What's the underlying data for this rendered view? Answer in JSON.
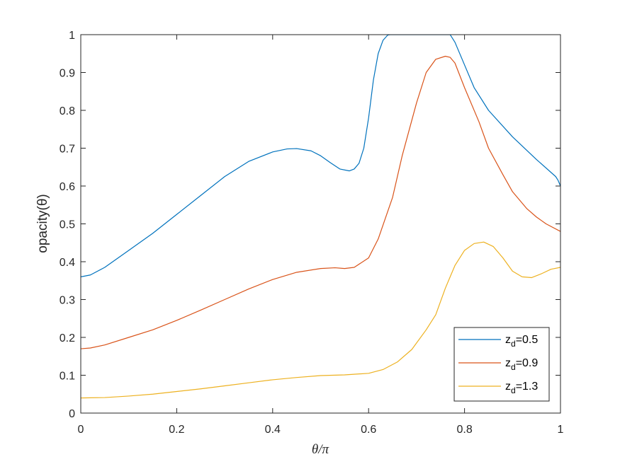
{
  "chart_data": {
    "type": "line",
    "title": "",
    "xlabel": "θ/π",
    "ylabel": "opacity(θ)",
    "xlim": [
      0,
      1
    ],
    "ylim": [
      0,
      1
    ],
    "xticks": [
      0,
      0.2,
      0.4,
      0.6,
      0.8,
      1
    ],
    "xtick_labels": [
      "0",
      "0.2",
      "0.4",
      "0.6",
      "0.8",
      "1"
    ],
    "yticks": [
      0,
      0.1,
      0.2,
      0.3,
      0.4,
      0.5,
      0.6,
      0.7,
      0.8,
      0.9,
      1
    ],
    "ytick_labels": [
      "0",
      "0.1",
      "0.2",
      "0.3",
      "0.4",
      "0.5",
      "0.6",
      "0.7",
      "0.8",
      "0.9",
      "1"
    ],
    "grid": false,
    "legend_position": "bottom-right",
    "series": [
      {
        "name": "z_d=0.5",
        "name_base": "z",
        "name_sub": "d",
        "name_rest": "=0.5",
        "color": "#0072BD",
        "x": [
          0,
          0.02,
          0.05,
          0.1,
          0.15,
          0.2,
          0.25,
          0.3,
          0.35,
          0.4,
          0.43,
          0.45,
          0.48,
          0.5,
          0.52,
          0.54,
          0.56,
          0.57,
          0.58,
          0.59,
          0.6,
          0.61,
          0.62,
          0.63,
          0.64,
          0.645,
          0.65,
          0.7,
          0.75,
          0.77,
          0.78,
          0.8,
          0.82,
          0.85,
          0.9,
          0.95,
          0.99,
          0.995,
          1.0
        ],
        "y": [
          0.36,
          0.365,
          0.385,
          0.43,
          0.475,
          0.525,
          0.575,
          0.625,
          0.665,
          0.69,
          0.698,
          0.699,
          0.693,
          0.68,
          0.662,
          0.645,
          0.64,
          0.645,
          0.66,
          0.7,
          0.78,
          0.88,
          0.95,
          0.985,
          0.999,
          1.0,
          1.0,
          1.0,
          1.0,
          1.0,
          0.98,
          0.92,
          0.86,
          0.8,
          0.73,
          0.67,
          0.625,
          0.615,
          0.6
        ]
      },
      {
        "name": "z_d=0.9",
        "name_base": "z",
        "name_sub": "d",
        "name_rest": "=0.9",
        "color": "#D95319",
        "x": [
          0,
          0.02,
          0.05,
          0.1,
          0.15,
          0.2,
          0.25,
          0.3,
          0.35,
          0.4,
          0.45,
          0.5,
          0.53,
          0.55,
          0.57,
          0.6,
          0.62,
          0.65,
          0.67,
          0.7,
          0.72,
          0.74,
          0.76,
          0.77,
          0.78,
          0.8,
          0.83,
          0.85,
          0.88,
          0.9,
          0.93,
          0.95,
          0.97,
          1.0
        ],
        "y": [
          0.17,
          0.172,
          0.18,
          0.2,
          0.22,
          0.245,
          0.272,
          0.3,
          0.328,
          0.353,
          0.372,
          0.382,
          0.384,
          0.382,
          0.385,
          0.41,
          0.46,
          0.57,
          0.68,
          0.82,
          0.9,
          0.935,
          0.943,
          0.94,
          0.925,
          0.86,
          0.77,
          0.7,
          0.63,
          0.585,
          0.54,
          0.518,
          0.5,
          0.48
        ]
      },
      {
        "name": "z_d=1.3",
        "name_base": "z",
        "name_sub": "d",
        "name_rest": "=1.3",
        "color": "#EDB120",
        "x": [
          0,
          0.05,
          0.1,
          0.15,
          0.2,
          0.25,
          0.3,
          0.35,
          0.4,
          0.45,
          0.5,
          0.55,
          0.6,
          0.63,
          0.66,
          0.69,
          0.72,
          0.74,
          0.76,
          0.78,
          0.8,
          0.82,
          0.84,
          0.86,
          0.88,
          0.9,
          0.92,
          0.94,
          0.96,
          0.98,
          1.0
        ],
        "y": [
          0.04,
          0.041,
          0.045,
          0.05,
          0.057,
          0.064,
          0.072,
          0.08,
          0.088,
          0.094,
          0.099,
          0.101,
          0.105,
          0.115,
          0.135,
          0.168,
          0.22,
          0.26,
          0.33,
          0.39,
          0.43,
          0.448,
          0.452,
          0.44,
          0.41,
          0.375,
          0.36,
          0.358,
          0.368,
          0.38,
          0.385
        ]
      }
    ]
  }
}
